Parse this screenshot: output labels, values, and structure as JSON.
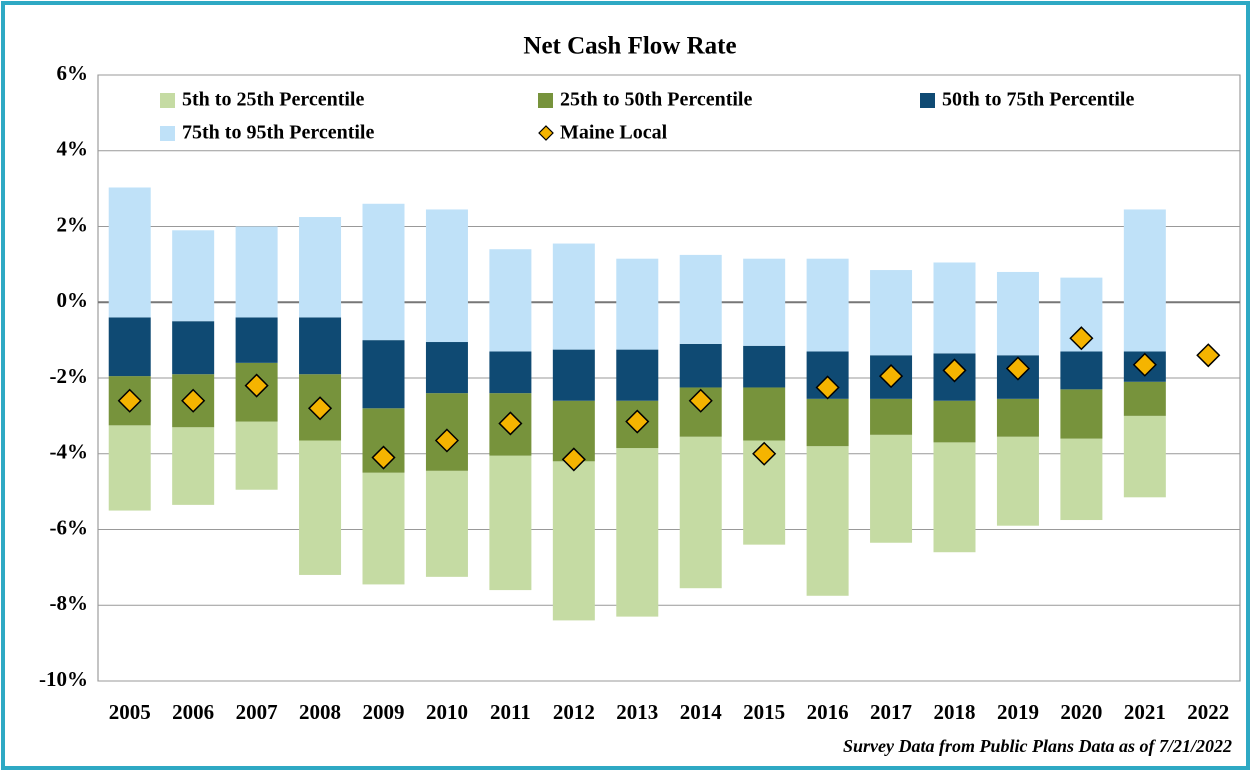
{
  "chart_data": {
    "type": "bar",
    "title": "Net Cash Flow Rate",
    "note": "Survey Data from Public Plans Data as of 7/21/2022",
    "categories": [
      "2005",
      "2006",
      "2007",
      "2008",
      "2009",
      "2010",
      "2011",
      "2012",
      "2013",
      "2014",
      "2015",
      "2016",
      "2017",
      "2018",
      "2019",
      "2020",
      "2021",
      "2022"
    ],
    "ylim": [
      -10,
      6
    ],
    "yticks": [
      {
        "value": -10,
        "label": "-10%"
      },
      {
        "value": -8,
        "label": "-8%"
      },
      {
        "value": -6,
        "label": "-6%"
      },
      {
        "value": -4,
        "label": "-4%"
      },
      {
        "value": -2,
        "label": "-2%"
      },
      {
        "value": 0,
        "label": "0%"
      },
      {
        "value": 2,
        "label": "2%"
      },
      {
        "value": 4,
        "label": "4%"
      },
      {
        "value": 6,
        "label": "6%"
      }
    ],
    "grid": true,
    "series": [
      {
        "name": "5th to 25th Percentile",
        "color": "#c5dba3",
        "values": [
          [
            -5.5,
            -3.25
          ],
          [
            -5.35,
            -3.3
          ],
          [
            -4.95,
            -3.15
          ],
          [
            -7.2,
            -3.65
          ],
          [
            -7.45,
            -4.5
          ],
          [
            -7.25,
            -4.45
          ],
          [
            -7.6,
            -4.05
          ],
          [
            -8.4,
            -4.2
          ],
          [
            -8.3,
            -3.85
          ],
          [
            -7.55,
            -3.55
          ],
          [
            -6.4,
            -3.65
          ],
          [
            -7.75,
            -3.8
          ],
          [
            -6.35,
            -3.5
          ],
          [
            -6.6,
            -3.7
          ],
          [
            -5.9,
            -3.55
          ],
          [
            -5.75,
            -3.6
          ],
          [
            -5.15,
            -3.0
          ],
          null
        ]
      },
      {
        "name": "25th to 50th Percentile",
        "color": "#77933c",
        "values": [
          [
            -3.25,
            -1.95
          ],
          [
            -3.3,
            -1.9
          ],
          [
            -3.15,
            -1.6
          ],
          [
            -3.65,
            -1.9
          ],
          [
            -4.5,
            -2.8
          ],
          [
            -4.45,
            -2.4
          ],
          [
            -4.05,
            -2.4
          ],
          [
            -4.2,
            -2.6
          ],
          [
            -3.85,
            -2.6
          ],
          [
            -3.55,
            -2.25
          ],
          [
            -3.65,
            -2.25
          ],
          [
            -3.8,
            -2.55
          ],
          [
            -3.5,
            -2.55
          ],
          [
            -3.7,
            -2.6
          ],
          [
            -3.55,
            -2.55
          ],
          [
            -3.6,
            -2.3
          ],
          [
            -3.0,
            -2.1
          ],
          null
        ]
      },
      {
        "name": "50th to 75th Percentile",
        "color": "#0f4a73",
        "values": [
          [
            -1.95,
            -0.4
          ],
          [
            -1.9,
            -0.5
          ],
          [
            -1.6,
            -0.4
          ],
          [
            -1.9,
            -0.4
          ],
          [
            -2.8,
            -1.0
          ],
          [
            -2.4,
            -1.05
          ],
          [
            -2.4,
            -1.3
          ],
          [
            -2.6,
            -1.25
          ],
          [
            -2.6,
            -1.25
          ],
          [
            -2.25,
            -1.1
          ],
          [
            -2.25,
            -1.15
          ],
          [
            -2.55,
            -1.3
          ],
          [
            -2.55,
            -1.4
          ],
          [
            -2.6,
            -1.35
          ],
          [
            -2.55,
            -1.4
          ],
          [
            -2.3,
            -1.3
          ],
          [
            -2.1,
            -1.3
          ],
          null
        ]
      },
      {
        "name": "75th to 95th Percentile",
        "color": "#bfe1f8",
        "values": [
          [
            -0.4,
            3.03
          ],
          [
            -0.5,
            1.9
          ],
          [
            -0.4,
            2.0
          ],
          [
            -0.4,
            2.25
          ],
          [
            -1.0,
            2.6
          ],
          [
            -1.05,
            2.45
          ],
          [
            -1.3,
            1.4
          ],
          [
            -1.25,
            1.55
          ],
          [
            -1.25,
            1.15
          ],
          [
            -1.1,
            1.25
          ],
          [
            -1.15,
            1.15
          ],
          [
            -1.3,
            1.15
          ],
          [
            -1.4,
            0.85
          ],
          [
            -1.35,
            1.05
          ],
          [
            -1.4,
            0.8
          ],
          [
            -1.3,
            0.65
          ],
          [
            -1.3,
            2.45
          ],
          null
        ]
      },
      {
        "name": "Maine Local",
        "color": "#f5b400",
        "marker": "diamond",
        "values": [
          -2.6,
          -2.6,
          -2.2,
          -2.8,
          -4.1,
          -3.65,
          -3.2,
          -4.15,
          -3.15,
          -2.6,
          -4.0,
          -2.25,
          -1.95,
          -1.8,
          -1.75,
          -0.95,
          -1.65,
          -1.4
        ]
      }
    ]
  }
}
